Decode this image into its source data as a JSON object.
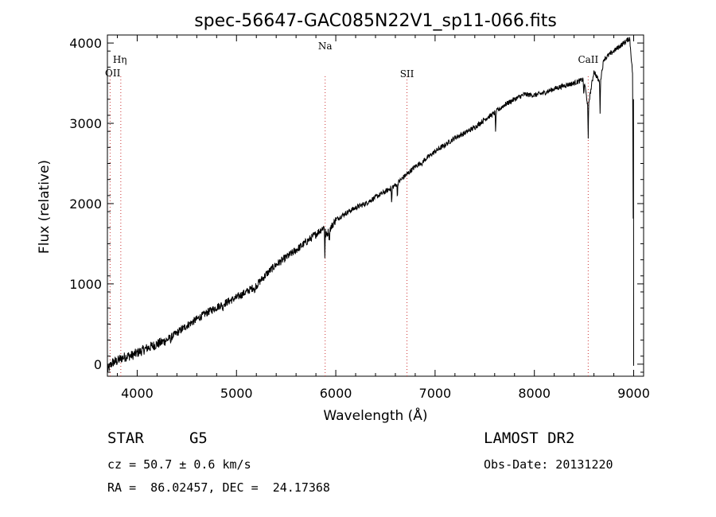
{
  "chart_data": {
    "type": "line",
    "title": "spec-56647-GAC085N22V1_sp11-066.fits",
    "xlabel": "Wavelength (Å)",
    "ylabel": "Flux (relative)",
    "xlim": [
      3700,
      9100
    ],
    "ylim": [
      -150,
      4100
    ],
    "xticks": [
      "4000",
      "5000",
      "6000",
      "7000",
      "8000",
      "9000"
    ],
    "yticks": [
      "0",
      "1000",
      "2000",
      "3000",
      "4000"
    ],
    "xtick_values": [
      4000,
      5000,
      6000,
      7000,
      8000,
      9000
    ],
    "ytick_values": [
      0,
      1000,
      2000,
      3000,
      4000
    ],
    "grid": false,
    "line_color": "#000000",
    "marker_color": "#cc3333",
    "series": [
      {
        "x": [
          3700,
          3750,
          3800,
          3850,
          3900,
          3950,
          4000,
          4100,
          4200,
          4300,
          4400,
          4500,
          4600,
          4700,
          4800,
          4900,
          5000,
          5100,
          5200,
          5300,
          5400,
          5500,
          5600,
          5700,
          5800,
          5890,
          5900,
          6000,
          6100,
          6200,
          6300,
          6400,
          6500,
          6600,
          6700,
          6800,
          6900,
          7000,
          7100,
          7200,
          7300,
          7400,
          7500,
          7600,
          7700,
          7800,
          7900,
          8000,
          8100,
          8200,
          8300,
          8400,
          8500,
          8540,
          8600,
          8660,
          8700,
          8800,
          8900,
          8960,
          8990,
          9000
        ],
        "y": [
          -80,
          20,
          40,
          80,
          100,
          110,
          140,
          200,
          250,
          300,
          390,
          480,
          560,
          640,
          710,
          770,
          830,
          900,
          980,
          1120,
          1240,
          1330,
          1420,
          1520,
          1620,
          1720,
          1600,
          1800,
          1880,
          1950,
          2000,
          2080,
          2150,
          2230,
          2350,
          2460,
          2550,
          2650,
          2730,
          2820,
          2880,
          2950,
          3050,
          3130,
          3230,
          3300,
          3360,
          3350,
          3380,
          3430,
          3470,
          3500,
          3550,
          3200,
          3650,
          3500,
          3800,
          3900,
          4000,
          4060,
          3600,
          0
        ]
      }
    ],
    "lines": [
      {
        "label": "Hη",
        "x": 3835
      },
      {
        "label": "OII",
        "x": 3727
      },
      {
        "label": "Na",
        "x": 5893
      },
      {
        "label": "SII",
        "x": 6717
      },
      {
        "label": "CaII",
        "x": 8542
      }
    ],
    "annotations": {
      "object": "STAR     G5",
      "velocity": "cz = 50.7 ± 0.6 km/s",
      "coords": "RA =  86.02457, DEC =  24.17368",
      "survey": "LAMOST DR2",
      "obs_date": "Obs-Date: 20131220"
    }
  }
}
